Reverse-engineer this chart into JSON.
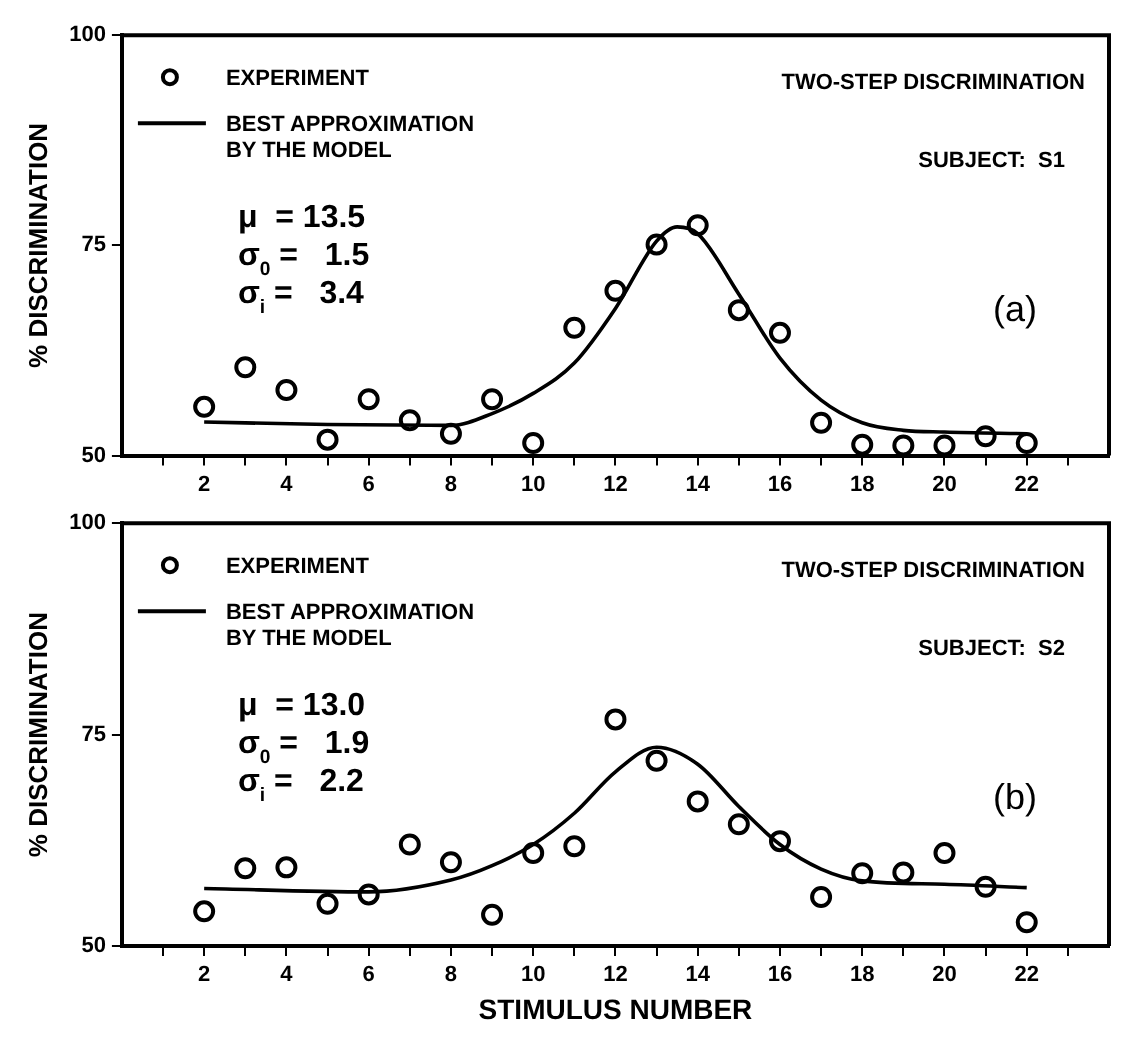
{
  "chart_data": [
    {
      "type": "scatter",
      "ylabel": "% DISCRIMINATION",
      "xlim": [
        0,
        24
      ],
      "xticks": [
        {
          "value": 1,
          "label": null
        },
        2,
        {
          "value": 3,
          "label": null
        },
        4,
        {
          "value": 5,
          "label": null
        },
        6,
        {
          "value": 7,
          "label": null
        },
        8,
        {
          "value": 9,
          "label": null
        },
        10,
        {
          "value": 11,
          "label": null
        },
        12,
        {
          "value": 13,
          "label": null
        },
        14,
        {
          "value": 15,
          "label": null
        },
        16,
        {
          "value": 17,
          "label": null
        },
        18,
        {
          "value": 19,
          "label": null
        },
        20,
        {
          "value": 21,
          "label": null
        },
        22,
        {
          "value": 23,
          "label": null
        }
      ],
      "ylim": [
        50,
        100
      ],
      "yticks": [
        50,
        75,
        100
      ],
      "grid": false,
      "legend": "top left",
      "annotations": [
        "TWO-STEP DISCRIMINATION",
        "SUBJECT:  S1",
        "μ  = 13.5",
        "σ$_{0}$ =   1.5",
        "σ$_{i}$ =   3.4",
        "(a)"
      ],
      "series": [
        {
          "name": "EXPERIMENT",
          "type": "scatter",
          "marker": "circle",
          "color": "#000000",
          "x": [
            2,
            3,
            4,
            5,
            6,
            7,
            8,
            9,
            10,
            11,
            12,
            13,
            14,
            15,
            16,
            17,
            18,
            19,
            20,
            21,
            22
          ],
          "values": [
            55.8,
            60.5,
            57.8,
            51.9,
            56.7,
            54.2,
            52.6,
            56.7,
            51.5,
            65.2,
            69.6,
            75.1,
            77.4,
            67.3,
            64.6,
            53.9,
            51.3,
            51.2,
            51.2,
            52.3,
            51.5
          ]
        },
        {
          "name": "BEST APPROXIMATION BY THE MODEL",
          "type": "line",
          "marker": "none",
          "line_style": "solid",
          "color": "#000000",
          "x": [
            2,
            5,
            8,
            9,
            10,
            11,
            12,
            13,
            13.5,
            14,
            15,
            16,
            17,
            18,
            19,
            20,
            22
          ],
          "values": [
            54.0,
            53.7,
            53.6,
            55.0,
            57.4,
            61.0,
            67.5,
            75.5,
            77.2,
            76.4,
            69.2,
            61.6,
            56.6,
            53.9,
            53.0,
            52.8,
            52.6
          ]
        }
      ]
    },
    {
      "type": "scatter",
      "xlabel": "STIMULUS NUMBER",
      "ylabel": "% DISCRIMINATION",
      "xlim": [
        0,
        24
      ],
      "xticks": [
        {
          "value": 1,
          "label": null
        },
        2,
        {
          "value": 3,
          "label": null
        },
        4,
        {
          "value": 5,
          "label": null
        },
        6,
        {
          "value": 7,
          "label": null
        },
        8,
        {
          "value": 9,
          "label": null
        },
        10,
        {
          "value": 11,
          "label": null
        },
        12,
        {
          "value": 13,
          "label": null
        },
        14,
        {
          "value": 15,
          "label": null
        },
        16,
        {
          "value": 17,
          "label": null
        },
        18,
        {
          "value": 19,
          "label": null
        },
        20,
        {
          "value": 21,
          "label": null
        },
        22,
        {
          "value": 23,
          "label": null
        }
      ],
      "ylim": [
        50,
        100
      ],
      "yticks": [
        50,
        75,
        100
      ],
      "grid": false,
      "legend": "top left",
      "annotations": [
        "TWO-STEP DISCRIMINATION",
        "SUBJECT:  S2",
        "μ  = 13.0",
        "σ$_{0}$ =   1.9",
        "σ$_{i}$ =   2.2",
        "(b)"
      ],
      "series": [
        {
          "name": "EXPERIMENT",
          "type": "scatter",
          "marker": "circle",
          "color": "#000000",
          "x": [
            2,
            3,
            4,
            5,
            6,
            7,
            8,
            9,
            10,
            11,
            12,
            13,
            14,
            15,
            16,
            17,
            18,
            19,
            20,
            21,
            22
          ],
          "values": [
            54.1,
            59.2,
            59.3,
            55.0,
            56.1,
            62.0,
            59.9,
            53.7,
            61.0,
            61.8,
            76.8,
            71.9,
            67.1,
            64.4,
            62.4,
            55.8,
            58.6,
            58.7,
            61.0,
            57.0,
            52.8
          ]
        },
        {
          "name": "BEST APPROXIMATION BY THE MODEL",
          "type": "line",
          "marker": "none",
          "line_style": "solid",
          "color": "#000000",
          "x": [
            2,
            6,
            8,
            9,
            10,
            11,
            12,
            13,
            14,
            15,
            16,
            17,
            18,
            20,
            22
          ],
          "values": [
            56.8,
            56.4,
            57.8,
            59.5,
            62.0,
            65.7,
            70.6,
            73.5,
            71.5,
            66.5,
            62.0,
            59.1,
            57.7,
            57.3,
            56.9
          ]
        }
      ]
    }
  ]
}
